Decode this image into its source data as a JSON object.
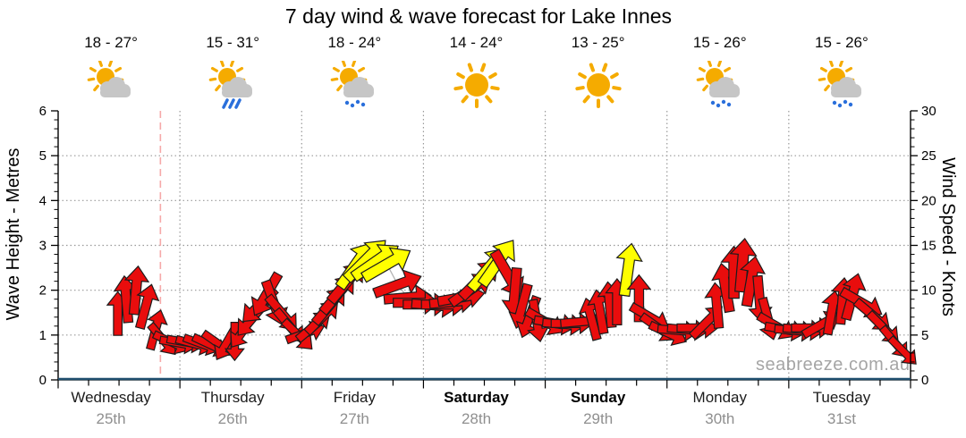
{
  "title": "7 day wind & wave forecast for Lake Innes",
  "watermark": "seabreeze.com.au",
  "left_axis": {
    "label": "Wave Height - Metres",
    "min": 0,
    "max": 6,
    "ticks": [
      "0",
      "1",
      "2",
      "3",
      "4",
      "5",
      "6"
    ]
  },
  "right_axis": {
    "label": "Wind Speed - Knots",
    "min": 0,
    "max": 30,
    "ticks": [
      "0",
      "5",
      "10",
      "15",
      "20",
      "25",
      "30"
    ]
  },
  "days": [
    {
      "name": "Wednesday",
      "date": "25th",
      "temps": "18 - 27°",
      "icon": "sun-cloud",
      "weekend": false
    },
    {
      "name": "Thursday",
      "date": "26th",
      "temps": "15 - 31°",
      "icon": "sun-cloud-rain",
      "weekend": false
    },
    {
      "name": "Friday",
      "date": "27th",
      "temps": "18 - 24°",
      "icon": "sun-cloud-drizzle",
      "weekend": false
    },
    {
      "name": "Saturday",
      "date": "28th",
      "temps": "14 - 24°",
      "icon": "sunny",
      "weekend": true
    },
    {
      "name": "Sunday",
      "date": "29th",
      "temps": "13 - 25°",
      "icon": "sunny",
      "weekend": true
    },
    {
      "name": "Monday",
      "date": "30th",
      "temps": "15 - 26°",
      "icon": "sun-cloud-drizzle",
      "weekend": false
    },
    {
      "name": "Tuesday",
      "date": "31st",
      "temps": "15 - 26°",
      "icon": "sun-cloud-drizzle",
      "weekend": false
    }
  ],
  "colors": {
    "arrow_light": "#e90d0d",
    "arrow_strong": "#ffff00",
    "arrow_outline": "#1c1c1c",
    "sun": "#f5ab00",
    "cloud": "#c6c6c6",
    "rain": "#2a6fdb",
    "gridline": "#999999",
    "axis": "#000000",
    "wave_line": "#1f4e6e",
    "now_line": "#f6a9a9",
    "line_joining_arrows": "#b5b5b5",
    "date_text": "#8f8f8f",
    "watermark_text": "#a5a5a5"
  },
  "chart_data": {
    "type": "wind-arrows",
    "x_axis_days": [
      "Wednesday 25th",
      "Thursday 26th",
      "Friday 27th",
      "Saturday 28th",
      "Sunday 29th",
      "Monday 30th",
      "Tuesday 31st"
    ],
    "y_left": {
      "label": "Wave Height - Metres",
      "range": [
        0,
        6
      ],
      "gridlines_at": [
        1,
        2,
        3,
        4,
        5
      ]
    },
    "y_right": {
      "label": "Wind Speed - Knots",
      "range": [
        0,
        30
      ],
      "major_tick_step": 5,
      "minor_tick_step": 1
    },
    "wave_height_metres": "flat at 0 m for all 7 days (lake)",
    "now_line_day_frac": 0.84,
    "arrow_format": "[day_position 0-7 (0=start Wednesday), wind_speed_knots, arrow_direction_deg (0=up,90=right), color r=red y=yellow(stronger wind)]",
    "arrows": [
      [
        0.49,
        7.4,
        0,
        "r"
      ],
      [
        0.56,
        9.0,
        355,
        "r"
      ],
      [
        0.64,
        10.0,
        5,
        "r"
      ],
      [
        0.72,
        8.2,
        15,
        "r"
      ],
      [
        0.8,
        5.6,
        15,
        "r"
      ],
      [
        0.86,
        4.5,
        140,
        "r"
      ],
      [
        0.93,
        4.2,
        115,
        "r"
      ],
      [
        0.99,
        4.1,
        100,
        "r"
      ],
      [
        1.05,
        4.2,
        100,
        "r"
      ],
      [
        1.12,
        4.0,
        105,
        "r"
      ],
      [
        1.18,
        4.0,
        110,
        "r"
      ],
      [
        1.25,
        3.9,
        115,
        "r"
      ],
      [
        1.32,
        4.0,
        125,
        "r"
      ],
      [
        1.38,
        4.1,
        210,
        "r"
      ],
      [
        1.45,
        4.3,
        180,
        "r"
      ],
      [
        1.52,
        5.5,
        215,
        "r"
      ],
      [
        1.59,
        6.8,
        220,
        "r"
      ],
      [
        1.65,
        8.3,
        225,
        "r"
      ],
      [
        1.71,
        9.5,
        210,
        "r"
      ],
      [
        1.77,
        8.6,
        160,
        "r"
      ],
      [
        1.84,
        7.4,
        140,
        "r"
      ],
      [
        1.9,
        6.0,
        140,
        "r"
      ],
      [
        1.97,
        5.0,
        135,
        "r"
      ],
      [
        2.03,
        5.2,
        70,
        "r"
      ],
      [
        2.1,
        6.0,
        50,
        "r"
      ],
      [
        2.17,
        7.0,
        45,
        "r"
      ],
      [
        2.23,
        8.3,
        40,
        "r"
      ],
      [
        2.3,
        9.6,
        40,
        "r"
      ],
      [
        2.37,
        10.9,
        40,
        "r"
      ],
      [
        2.44,
        12.8,
        35,
        "y"
      ],
      [
        2.53,
        13.4,
        45,
        "y"
      ],
      [
        2.61,
        13.2,
        55,
        "y"
      ],
      [
        2.7,
        12.9,
        60,
        "y"
      ],
      [
        2.79,
        10.6,
        70,
        "r"
      ],
      [
        2.87,
        9.2,
        85,
        "r"
      ],
      [
        2.94,
        8.6,
        90,
        "r"
      ],
      [
        3.02,
        8.4,
        90,
        "r"
      ],
      [
        3.09,
        8.3,
        95,
        "r"
      ],
      [
        3.17,
        8.4,
        90,
        "r"
      ],
      [
        3.24,
        8.7,
        85,
        "r"
      ],
      [
        3.31,
        9.2,
        80,
        "r"
      ],
      [
        3.39,
        10.1,
        55,
        "r"
      ],
      [
        3.46,
        11.2,
        45,
        "r"
      ],
      [
        3.53,
        12.4,
        40,
        "y"
      ],
      [
        3.61,
        13.1,
        35,
        "y"
      ],
      [
        3.69,
        11.8,
        150,
        "r"
      ],
      [
        3.75,
        9.8,
        185,
        "r"
      ],
      [
        3.81,
        8.2,
        195,
        "r"
      ],
      [
        3.87,
        7.0,
        200,
        "r"
      ],
      [
        3.93,
        6.6,
        170,
        "r"
      ],
      [
        4.0,
        6.5,
        120,
        "r"
      ],
      [
        4.08,
        6.3,
        100,
        "r"
      ],
      [
        4.15,
        6.2,
        95,
        "r"
      ],
      [
        4.22,
        6.3,
        90,
        "r"
      ],
      [
        4.3,
        6.5,
        85,
        "r"
      ],
      [
        4.38,
        6.8,
        345,
        "r"
      ],
      [
        4.45,
        7.6,
        350,
        "r"
      ],
      [
        4.53,
        8.4,
        355,
        "r"
      ],
      [
        4.59,
        8.7,
        0,
        "r"
      ],
      [
        4.68,
        12.3,
        8,
        "y"
      ],
      [
        4.77,
        9.1,
        0,
        "r"
      ],
      [
        4.86,
        7.0,
        120,
        "r"
      ],
      [
        4.93,
        5.8,
        125,
        "r"
      ],
      [
        5.01,
        5.2,
        115,
        "r"
      ],
      [
        5.09,
        5.5,
        95,
        "r"
      ],
      [
        5.17,
        5.6,
        95,
        "r"
      ],
      [
        5.25,
        5.8,
        90,
        "r"
      ],
      [
        5.33,
        6.5,
        45,
        "r"
      ],
      [
        5.41,
        8.3,
        355,
        "r"
      ],
      [
        5.48,
        10.3,
        350,
        "r"
      ],
      [
        5.55,
        12.0,
        0,
        "r"
      ],
      [
        5.62,
        12.8,
        5,
        "r"
      ],
      [
        5.69,
        11.0,
        10,
        "r"
      ],
      [
        5.76,
        9.0,
        175,
        "r"
      ],
      [
        5.83,
        6.8,
        165,
        "r"
      ],
      [
        5.9,
        6.0,
        120,
        "r"
      ],
      [
        5.97,
        5.6,
        100,
        "r"
      ],
      [
        6.05,
        5.5,
        95,
        "r"
      ],
      [
        6.12,
        5.6,
        95,
        "r"
      ],
      [
        6.19,
        5.8,
        90,
        "r"
      ],
      [
        6.27,
        6.2,
        60,
        "r"
      ],
      [
        6.35,
        7.5,
        10,
        "r"
      ],
      [
        6.44,
        8.8,
        5,
        "r"
      ],
      [
        6.52,
        9.3,
        15,
        "r"
      ],
      [
        6.6,
        8.6,
        120,
        "r"
      ],
      [
        6.69,
        7.2,
        130,
        "r"
      ],
      [
        6.78,
        5.8,
        135,
        "r"
      ],
      [
        6.87,
        4.2,
        140,
        "r"
      ],
      [
        6.94,
        3.2,
        135,
        "r"
      ]
    ]
  }
}
